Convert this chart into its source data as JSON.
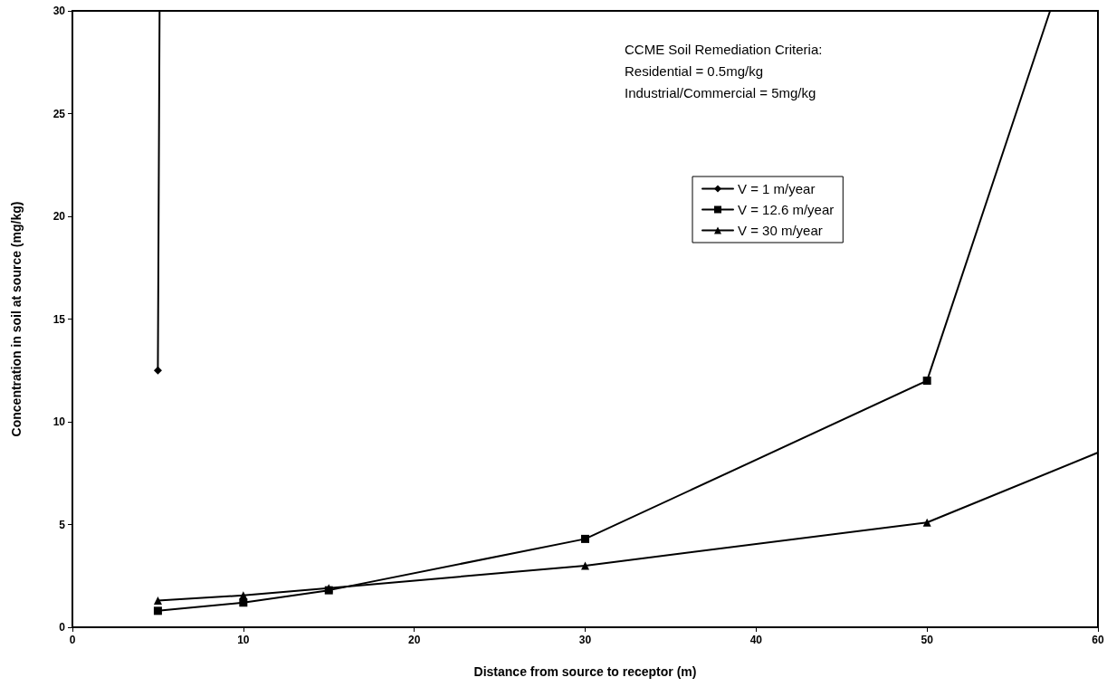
{
  "chart_data": {
    "type": "line",
    "xlabel": "Distance from source to receptor (m)",
    "ylabel": "Concentration in soil at source (mg/kg)",
    "annotations": [
      "CCME Soil Remediation Criteria:\nResidential = 0.5mg/kg\nIndustrial/Commercial = 5mg/kg"
    ],
    "series": [
      {
        "name": "V = 1 m/year",
        "color": "#000000",
        "marker": "diamond",
        "x": [
          5,
          5.1
        ],
        "values": [
          12.5,
          30
        ]
      },
      {
        "name": "V = 12.6 m/year",
        "color": "#000000",
        "marker": "square",
        "x": [
          5,
          10,
          15,
          30,
          50,
          57.2
        ],
        "values": [
          0.8,
          1.2,
          1.8,
          4.3,
          12.0,
          30
        ]
      },
      {
        "name": "V = 30 m/year",
        "color": "#000000",
        "marker": "triangle",
        "x": [
          5,
          10,
          15,
          30,
          50,
          60
        ],
        "values": [
          1.3,
          1.55,
          1.9,
          3.0,
          5.1,
          8.5
        ]
      }
    ],
    "xlim": [
      0,
      60
    ],
    "xticks": [
      0,
      10,
      20,
      30,
      40,
      50,
      60
    ],
    "ylim": [
      0,
      30
    ],
    "yticks": [
      0,
      5,
      10,
      15,
      20,
      25,
      30
    ],
    "grid": false,
    "legend": "right",
    "line_style": "solid"
  }
}
